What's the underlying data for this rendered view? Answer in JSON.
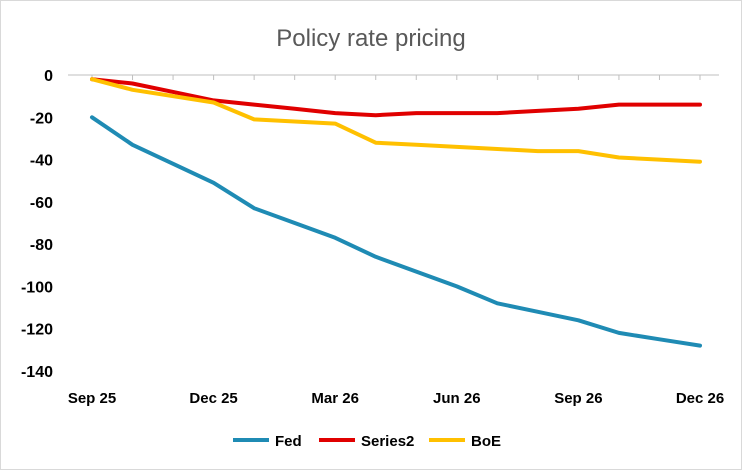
{
  "chart_data": {
    "type": "line",
    "title": "Policy rate pricing",
    "xlabel": "",
    "ylabel": "",
    "ylim": [
      -140,
      0
    ],
    "yticks": [
      0,
      -20,
      -40,
      -60,
      -80,
      -100,
      -120,
      -140
    ],
    "x": [
      "Sep 25",
      "Oct 25",
      "Nov 25",
      "Dec 25",
      "Jan 26",
      "Feb 26",
      "Mar 26",
      "Apr 26",
      "May 26",
      "Jun 26",
      "Jul 26",
      "Aug 26",
      "Sep 26",
      "Oct 26",
      "Nov 26",
      "Dec 26"
    ],
    "xtick_labels": [
      "Sep 25",
      "Dec 25",
      "Mar 26",
      "Jun 26",
      "Sep 26",
      "Dec 26"
    ],
    "grid": false,
    "legend": "bottom",
    "series": [
      {
        "name": "Fed",
        "color": "#1F8BB4",
        "values": [
          -20,
          -33,
          -42,
          -51,
          -63,
          -70,
          -77,
          -86,
          -93,
          -100,
          -108,
          -112,
          -116,
          -122,
          -125,
          -128
        ]
      },
      {
        "name": "Series2",
        "color": "#E00000",
        "values": [
          -2,
          -4,
          -8,
          -12,
          -14,
          -16,
          -18,
          -19,
          -18,
          -18,
          -18,
          -17,
          -16,
          -14,
          -14,
          -14
        ]
      },
      {
        "name": "BoE",
        "color": "#FFC000",
        "values": [
          -2,
          -7,
          -10,
          -13,
          -21,
          -22,
          -23,
          -32,
          -33,
          -34,
          -35,
          -36,
          -36,
          -39,
          -40,
          -41
        ]
      }
    ]
  }
}
